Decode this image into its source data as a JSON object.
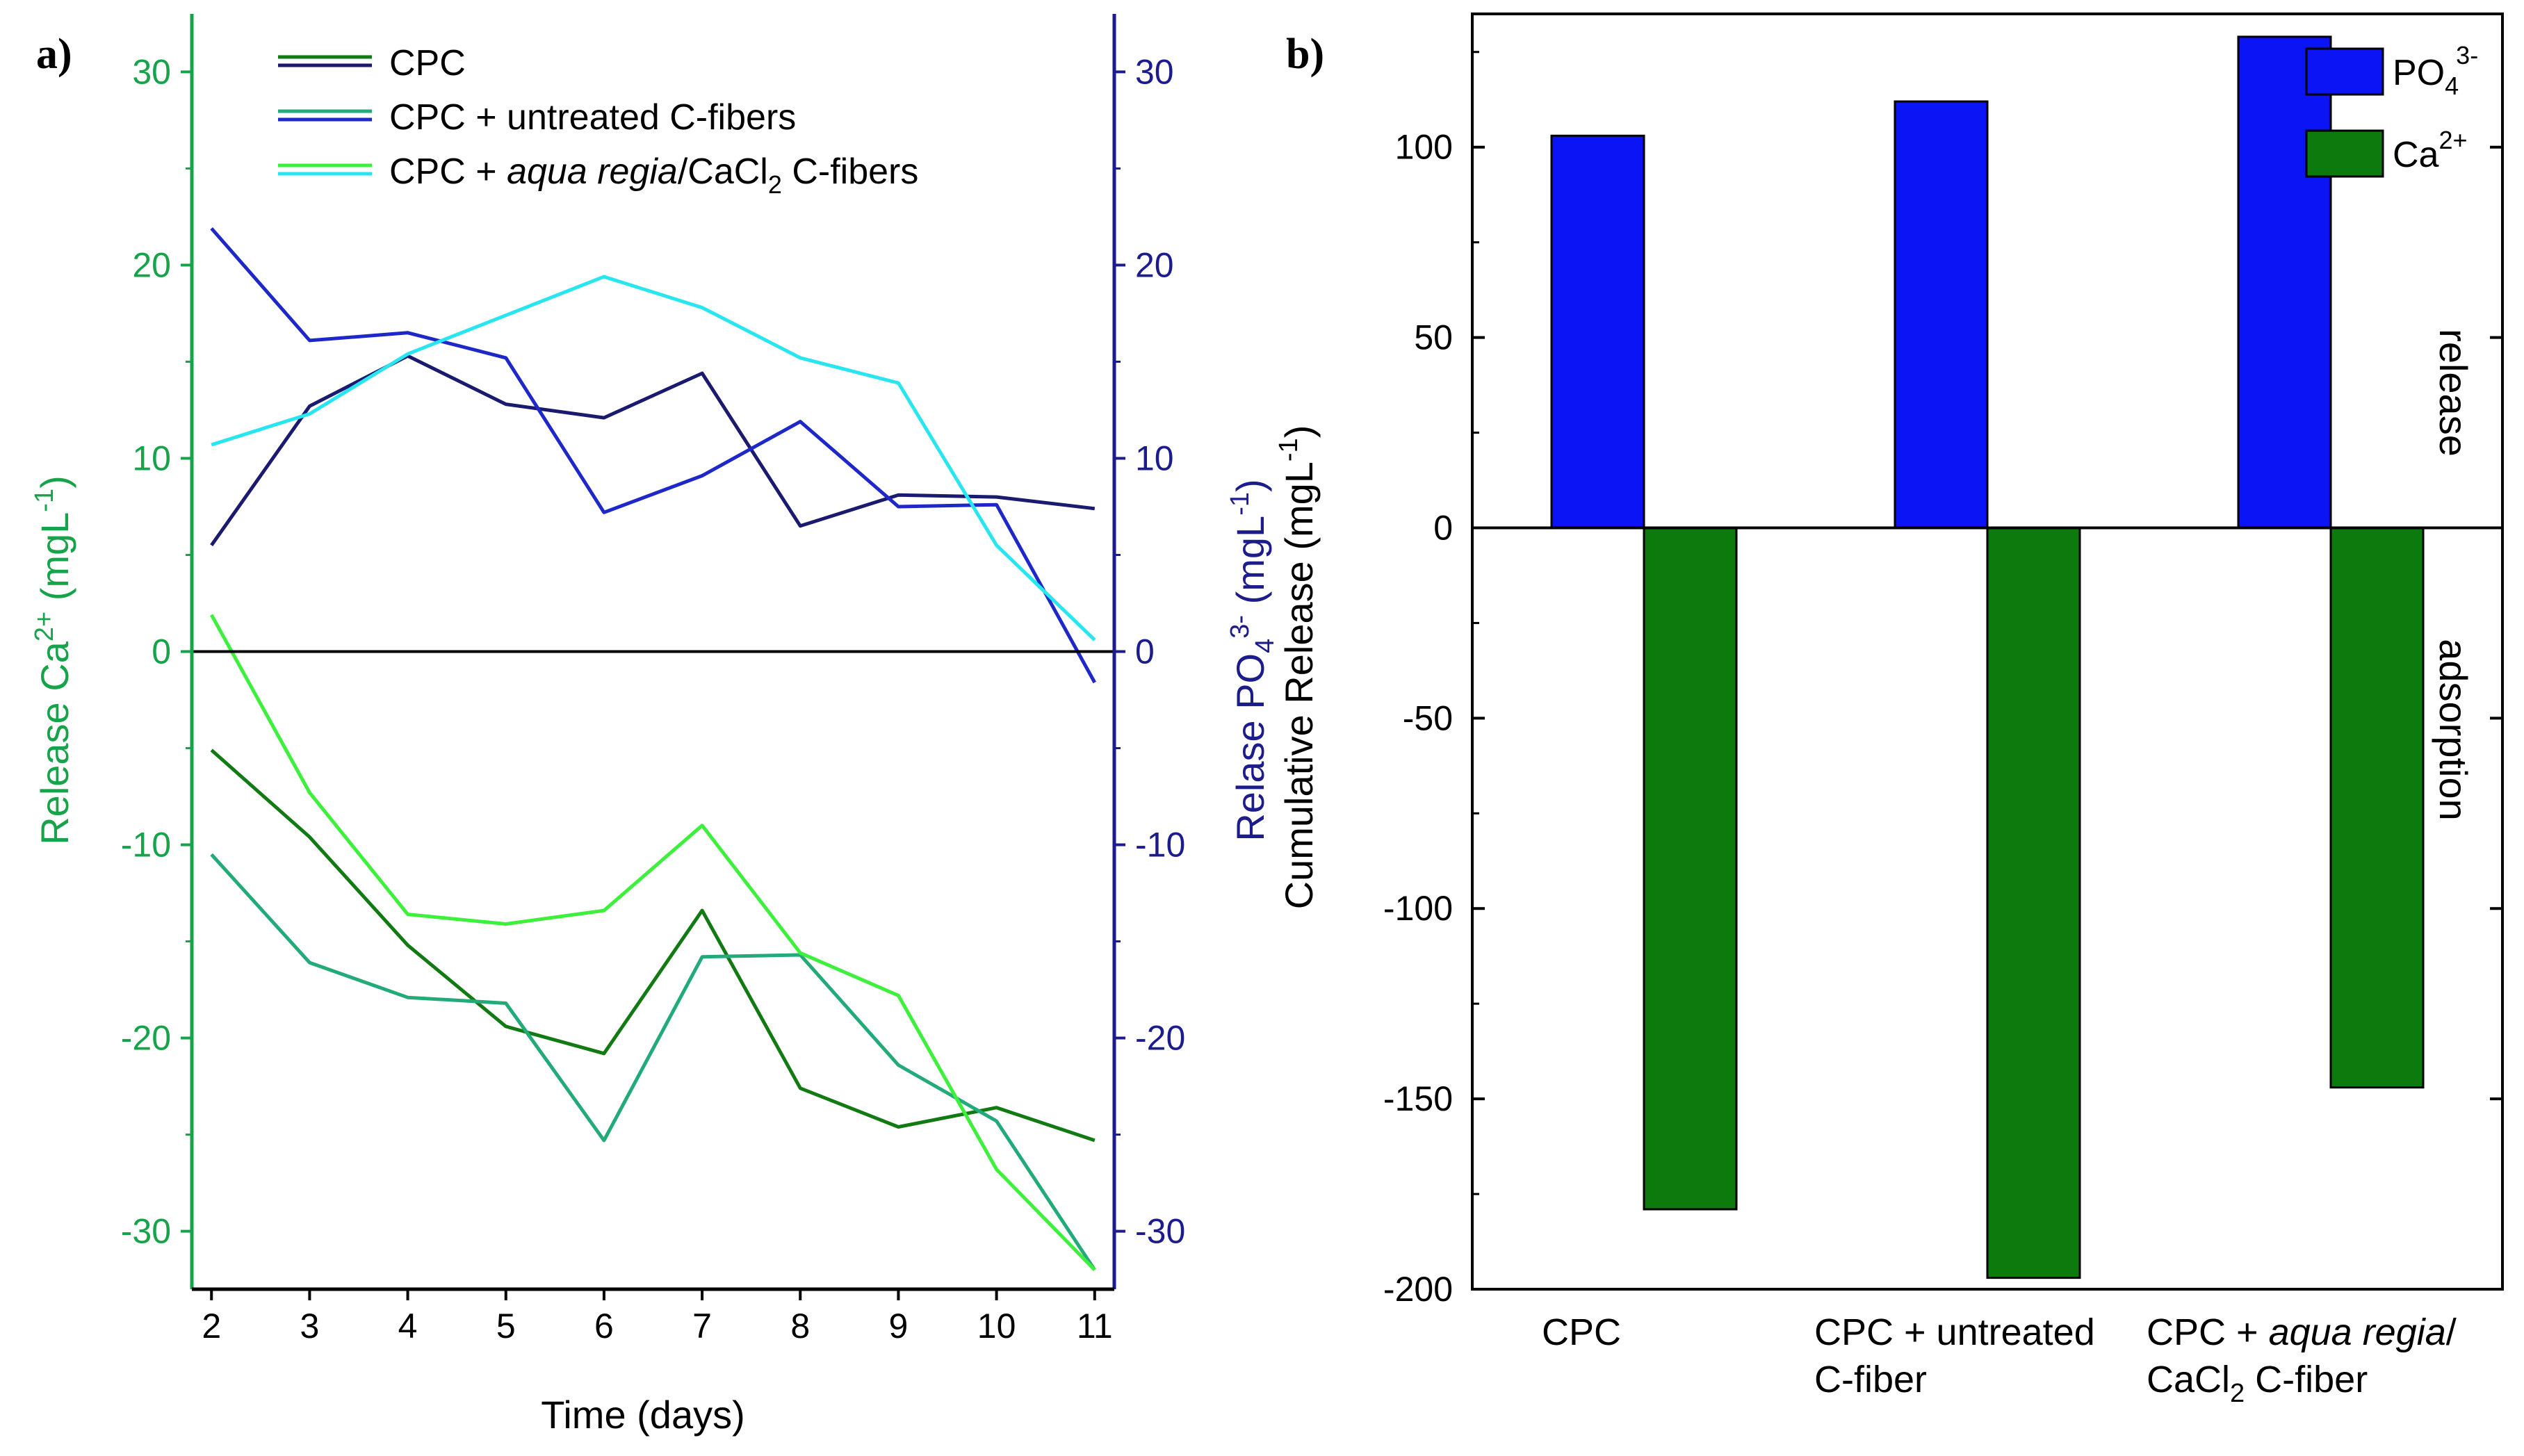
{
  "chart_data": [
    {
      "type": "line",
      "panel_label": "a)",
      "xlabel": "Time (days)",
      "x": [
        2,
        3,
        4,
        5,
        6,
        7,
        8,
        9,
        10,
        11
      ],
      "xlim": [
        1.8,
        11.2
      ],
      "y_left": {
        "label_parts": [
          "Release Ca",
          "2+",
          " (mgL",
          "-1",
          ")"
        ],
        "lim": [
          -33,
          33
        ],
        "ticks": [
          -30,
          -20,
          -10,
          0,
          10,
          20,
          30
        ],
        "color": "#16a34a"
      },
      "y_right": {
        "label_parts": [
          "Relase PO",
          "4",
          "3-",
          " (mgL",
          "-1",
          ")"
        ],
        "lim": [
          -33,
          33
        ],
        "ticks": [
          -30,
          -20,
          -10,
          0,
          10,
          20,
          30
        ],
        "color": "#1c1c8c"
      },
      "zero_line": true,
      "legend": [
        {
          "text": "CPC",
          "color_ca": "#127a12",
          "color_po": "#1a1a6e"
        },
        {
          "text": "CPC + untreated C-fibers",
          "color_ca": "#22aa78",
          "color_po": "#1e28c8"
        },
        {
          "text_parts": [
            "CPC + ",
            "aqua regia",
            "/CaCl",
            "2",
            " C-fibers"
          ],
          "color_ca": "#3cf03c",
          "color_po": "#28e6f0"
        }
      ],
      "series": [
        {
          "name": "CPC Ca2+",
          "axis": "left",
          "color": "#127a12",
          "values": [
            -5.1,
            -9.6,
            -15.2,
            -19.4,
            -20.8,
            -13.4,
            -22.6,
            -24.6,
            -23.6,
            -25.3
          ]
        },
        {
          "name": "CPC + untreated C-fibers Ca2+",
          "axis": "left",
          "color": "#22aa78",
          "values": [
            -10.5,
            -16.1,
            -17.9,
            -18.2,
            -25.3,
            -15.8,
            -15.7,
            -21.4,
            -24.3,
            -32.0
          ]
        },
        {
          "name": "CPC + aqua regia/CaCl2 C-fibers Ca2+",
          "axis": "left",
          "color": "#3cf03c",
          "values": [
            1.9,
            -7.3,
            -13.6,
            -14.1,
            -13.4,
            -9.0,
            -15.6,
            -17.8,
            -26.8,
            -32.0
          ]
        },
        {
          "name": "CPC PO4 3-",
          "axis": "right",
          "color": "#1a1a6e",
          "values": [
            5.5,
            12.7,
            15.3,
            12.8,
            12.1,
            14.4,
            6.5,
            8.1,
            8.0,
            7.4
          ]
        },
        {
          "name": "CPC + untreated C-fibers PO4 3-",
          "axis": "right",
          "color": "#1e28c8",
          "values": [
            21.9,
            16.1,
            16.5,
            15.2,
            7.2,
            9.1,
            11.9,
            7.5,
            7.6,
            -1.6
          ]
        },
        {
          "name": "CPC + aqua regia/CaCl2 C-fibers PO4 3-",
          "axis": "right",
          "color": "#28e6f0",
          "values": [
            10.7,
            12.3,
            15.4,
            17.4,
            19.4,
            17.8,
            15.2,
            13.9,
            5.5,
            0.6
          ]
        }
      ]
    },
    {
      "type": "bar",
      "panel_label": "b)",
      "ylabel_parts": [
        "Cumulative Release (mgL",
        "-1",
        ")"
      ],
      "ylim": [
        -200,
        135
      ],
      "yticks": [
        -200,
        -150,
        -100,
        -50,
        0,
        50,
        100
      ],
      "categories": [
        {
          "lines": [
            {
              "parts": [
                "CPC"
              ]
            }
          ]
        },
        {
          "lines": [
            {
              "parts": [
                "CPC + untreated"
              ]
            },
            {
              "parts": [
                "C-fiber"
              ]
            }
          ]
        },
        {
          "lines": [
            {
              "parts": [
                "CPC + ",
                "aqua regia",
                "/"
              ]
            },
            {
              "parts": [
                "CaCl",
                "2",
                " C-fiber"
              ]
            }
          ]
        }
      ],
      "legend": [
        {
          "base": "PO",
          "sub": "4",
          "sup": "3-",
          "color": "#0a14f5"
        },
        {
          "base": "Ca",
          "sub": "",
          "sup": "2+",
          "color": "#0d7a0d"
        }
      ],
      "series": [
        {
          "name": "PO4 3-",
          "color": "#0a14f5",
          "values": [
            103,
            112,
            129
          ]
        },
        {
          "name": "Ca2+",
          "color": "#0d7a0d",
          "values": [
            -179,
            -197,
            -147
          ]
        }
      ],
      "annotations": [
        "release",
        "adsorption"
      ]
    }
  ]
}
